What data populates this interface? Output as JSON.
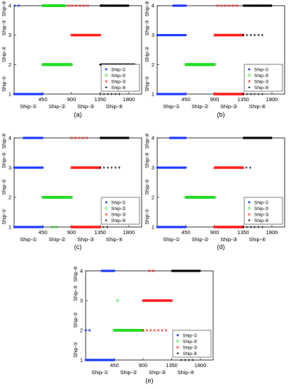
{
  "figure": {
    "legend_entries": [
      {
        "label": "Ship-①",
        "color": "#1f3bff",
        "marker": "star"
      },
      {
        "label": "Ship-②",
        "color": "#22dd22",
        "marker": "circle"
      },
      {
        "label": "Ship-③",
        "color": "#ff2020",
        "marker": "x"
      },
      {
        "label": "Ship-④",
        "color": "#000000",
        "marker": "plus"
      }
    ],
    "x_category_labels": [
      "Ship-①",
      "Ship-②",
      "Ship-③",
      "Ship-④"
    ],
    "y_side_labels": [
      "Ship-①",
      "Ship-②",
      "Ship-③",
      "Ship-④"
    ]
  },
  "chart_data": [
    {
      "type": "scatter",
      "panel_label": "(a)",
      "xlim": [
        0,
        2000
      ],
      "ylim": [
        1,
        4
      ],
      "xticks": [
        450,
        900,
        1350,
        1800
      ],
      "yticks": [
        1,
        2,
        3,
        4
      ],
      "segments": [
        {
          "series": "Ship-①",
          "y": 4,
          "x_start": 10,
          "x_end": 120,
          "density": "sparse"
        },
        {
          "series": "Ship-①",
          "y": 1,
          "x_start": 0,
          "x_end": 450,
          "density": "dense"
        },
        {
          "series": "Ship-②",
          "y": 4,
          "x_start": 450,
          "x_end": 800,
          "density": "dense"
        },
        {
          "series": "Ship-②",
          "y": 2,
          "x_start": 450,
          "x_end": 900,
          "density": "dense"
        },
        {
          "series": "Ship-③",
          "y": 3,
          "x_start": 900,
          "x_end": 1350,
          "density": "dense"
        },
        {
          "series": "Ship-③",
          "y": 4,
          "x_start": 850,
          "x_end": 1150,
          "density": "sparse"
        },
        {
          "series": "Ship-④",
          "y": 4,
          "x_start": 1350,
          "x_end": 1800,
          "density": "dense"
        },
        {
          "series": "Ship-④",
          "y": 2,
          "x_start": 1350,
          "x_end": 1900,
          "density": "dense"
        },
        {
          "series": "Ship-④",
          "y": 1,
          "x_start": 1350,
          "x_end": 1650,
          "density": "sparse"
        }
      ]
    },
    {
      "type": "scatter",
      "panel_label": "(b)",
      "xlim": [
        0,
        2000
      ],
      "ylim": [
        1,
        4
      ],
      "xticks": [
        450,
        900,
        1350,
        1800
      ],
      "yticks": [
        1,
        2,
        3,
        4
      ],
      "segments": [
        {
          "series": "Ship-①",
          "y": 4,
          "x_start": 250,
          "x_end": 450,
          "density": "dense"
        },
        {
          "series": "Ship-①",
          "y": 3,
          "x_start": 0,
          "x_end": 450,
          "density": "dense"
        },
        {
          "series": "Ship-①",
          "y": 1,
          "x_start": 0,
          "x_end": 450,
          "density": "dense"
        },
        {
          "series": "Ship-②",
          "y": 2,
          "x_start": 450,
          "x_end": 900,
          "density": "dense"
        },
        {
          "series": "Ship-③",
          "y": 4,
          "x_start": 950,
          "x_end": 1300,
          "density": "sparse"
        },
        {
          "series": "Ship-③",
          "y": 3,
          "x_start": 900,
          "x_end": 1350,
          "density": "dense"
        },
        {
          "series": "Ship-③",
          "y": 1,
          "x_start": 900,
          "x_end": 1350,
          "density": "dense"
        },
        {
          "series": "Ship-④",
          "y": 4,
          "x_start": 1350,
          "x_end": 1800,
          "density": "dense"
        },
        {
          "series": "Ship-④",
          "y": 3,
          "x_start": 1350,
          "x_end": 1700,
          "density": "sparse"
        },
        {
          "series": "Ship-④",
          "y": 1,
          "x_start": 1350,
          "x_end": 1700,
          "density": "sparse"
        }
      ]
    },
    {
      "type": "scatter",
      "panel_label": "(c)",
      "xlim": [
        0,
        2000
      ],
      "ylim": [
        1,
        4
      ],
      "xticks": [
        450,
        900,
        1350,
        1800
      ],
      "yticks": [
        1,
        2,
        3,
        4
      ],
      "segments": [
        {
          "series": "Ship-①",
          "y": 4,
          "x_start": 150,
          "x_end": 450,
          "density": "dense"
        },
        {
          "series": "Ship-①",
          "y": 3,
          "x_start": 0,
          "x_end": 450,
          "density": "dense"
        },
        {
          "series": "Ship-①",
          "y": 1,
          "x_start": 0,
          "x_end": 450,
          "density": "dense"
        },
        {
          "series": "Ship-②",
          "y": 2,
          "x_start": 450,
          "x_end": 900,
          "density": "dense"
        },
        {
          "series": "Ship-②",
          "y": 1,
          "x_start": 600,
          "x_end": 700,
          "density": "sparse"
        },
        {
          "series": "Ship-③",
          "y": 4,
          "x_start": 900,
          "x_end": 1150,
          "density": "sparse"
        },
        {
          "series": "Ship-③",
          "y": 3,
          "x_start": 900,
          "x_end": 1350,
          "density": "dense"
        },
        {
          "series": "Ship-③",
          "y": 1,
          "x_start": 900,
          "x_end": 1350,
          "density": "dense"
        },
        {
          "series": "Ship-④",
          "y": 4,
          "x_start": 1350,
          "x_end": 1800,
          "density": "dense"
        },
        {
          "series": "Ship-④",
          "y": 3,
          "x_start": 1350,
          "x_end": 1650,
          "density": "sparse"
        },
        {
          "series": "Ship-④",
          "y": 1,
          "x_start": 1400,
          "x_end": 1500,
          "density": "sparse"
        }
      ]
    },
    {
      "type": "scatter",
      "panel_label": "(d)",
      "xlim": [
        0,
        2000
      ],
      "ylim": [
        1,
        4
      ],
      "xticks": [
        450,
        900,
        1350,
        1800
      ],
      "yticks": [
        1,
        2,
        3,
        4
      ],
      "segments": [
        {
          "series": "Ship-①",
          "y": 4,
          "x_start": 200,
          "x_end": 450,
          "density": "dense"
        },
        {
          "series": "Ship-①",
          "y": 3,
          "x_start": 0,
          "x_end": 450,
          "density": "dense"
        },
        {
          "series": "Ship-①",
          "y": 1,
          "x_start": 0,
          "x_end": 450,
          "density": "dense"
        },
        {
          "series": "Ship-②",
          "y": 2,
          "x_start": 450,
          "x_end": 900,
          "density": "dense"
        },
        {
          "series": "Ship-③",
          "y": 3,
          "x_start": 900,
          "x_end": 1350,
          "density": "dense"
        },
        {
          "series": "Ship-③",
          "y": 1,
          "x_start": 900,
          "x_end": 1350,
          "density": "dense"
        },
        {
          "series": "Ship-④",
          "y": 4,
          "x_start": 1350,
          "x_end": 1800,
          "density": "dense"
        },
        {
          "series": "Ship-④",
          "y": 3,
          "x_start": 1400,
          "x_end": 1500,
          "density": "sparse"
        },
        {
          "series": "Ship-④",
          "y": 1,
          "x_start": 1350,
          "x_end": 1700,
          "density": "sparse"
        }
      ]
    },
    {
      "type": "scatter",
      "panel_label": "(e)",
      "xlim": [
        0,
        2000
      ],
      "ylim": [
        1,
        4
      ],
      "xticks": [
        450,
        900,
        1350,
        1800
      ],
      "yticks": [
        1,
        2,
        3,
        4
      ],
      "segments": [
        {
          "series": "Ship-①",
          "y": 4,
          "x_start": 250,
          "x_end": 450,
          "density": "dense"
        },
        {
          "series": "Ship-①",
          "y": 2,
          "x_start": 0,
          "x_end": 100,
          "density": "sparse"
        },
        {
          "series": "Ship-①",
          "y": 1,
          "x_start": 0,
          "x_end": 450,
          "density": "dense"
        },
        {
          "series": "Ship-②",
          "y": 3,
          "x_start": 500,
          "x_end": 550,
          "density": "sparse"
        },
        {
          "series": "Ship-②",
          "y": 2,
          "x_start": 450,
          "x_end": 900,
          "density": "dense"
        },
        {
          "series": "Ship-③",
          "y": 4,
          "x_start": 1000,
          "x_end": 1100,
          "density": "sparse"
        },
        {
          "series": "Ship-③",
          "y": 3,
          "x_start": 900,
          "x_end": 1350,
          "density": "dense"
        },
        {
          "series": "Ship-③",
          "y": 2,
          "x_start": 900,
          "x_end": 1300,
          "density": "sparse"
        },
        {
          "series": "Ship-④",
          "y": 4,
          "x_start": 1350,
          "x_end": 1800,
          "density": "dense"
        },
        {
          "series": "Ship-④",
          "y": 1,
          "x_start": 1500,
          "x_end": 1700,
          "density": "sparse"
        }
      ]
    }
  ]
}
